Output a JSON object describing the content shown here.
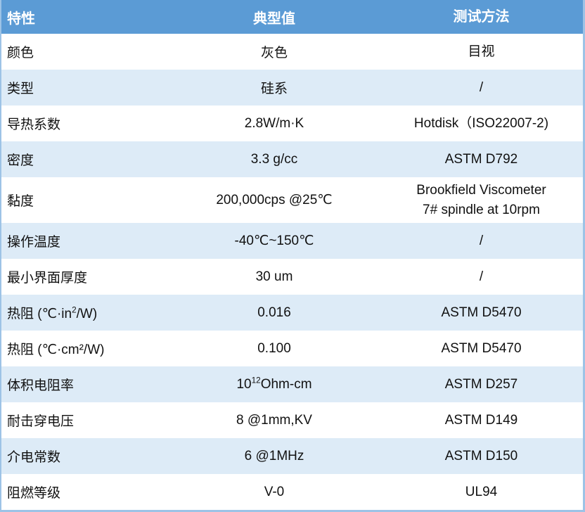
{
  "table": {
    "columns": [
      "特性",
      "典型值",
      "测试方法"
    ],
    "rows": [
      {
        "property": "颜色",
        "value": "灰色",
        "method": "目视",
        "banded": false
      },
      {
        "property": "类型",
        "value": "硅系",
        "method": "/",
        "banded": true
      },
      {
        "property": "导热系数",
        "value": "2.8W/m·K",
        "method": "Hotdisk（ISO22007-2)",
        "banded": false
      },
      {
        "property": "密度",
        "value": "3.3 g/cc",
        "method": "ASTM D792",
        "banded": true
      },
      {
        "property": "黏度",
        "value": "200,000cps @25℃",
        "method": "Brookfield Viscometer\n7# spindle at 10rpm",
        "banded": false,
        "tall": true
      },
      {
        "property": "操作温度",
        "value": "-40℃~150℃",
        "method": "/",
        "banded": true
      },
      {
        "property": "最小界面厚度",
        "value": "30 um",
        "method": "/",
        "banded": false
      },
      {
        "property": [
          {
            "text": "热阻 (℃·in"
          },
          {
            "text": "2",
            "sup": true
          },
          {
            "text": "/W)"
          }
        ],
        "value": "0.016",
        "method": "ASTM D5470",
        "banded": true
      },
      {
        "property": "热阻 (℃·cm²/W)",
        "value": "0.100",
        "method": "ASTM D5470",
        "banded": false
      },
      {
        "property": "体积电阻率",
        "value": [
          {
            "text": "10"
          },
          {
            "text": "12",
            "sup": true
          },
          {
            "text": "Ohm-cm"
          }
        ],
        "method": "ASTM D257",
        "banded": true
      },
      {
        "property": "耐击穿电压",
        "value": "8 @1mm,KV",
        "method": "ASTM D149",
        "banded": false
      },
      {
        "property": "介电常数",
        "value": "6 @1MHz",
        "method": "ASTM D150",
        "banded": true
      },
      {
        "property": "阻燃等级",
        "value": "V-0",
        "method": "UL94",
        "banded": false
      }
    ],
    "colors": {
      "header_bg": "#5B9BD5",
      "banded_row_bg": "#DDEBF7",
      "border": "#9DC3E6",
      "header_text": "#FFFFFF",
      "body_text": "#111111"
    }
  }
}
